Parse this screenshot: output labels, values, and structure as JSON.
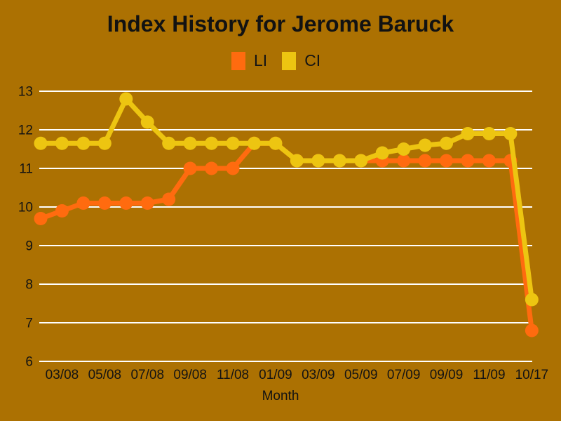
{
  "colors": {
    "background": "#AC7102",
    "gridline": "#FFFFFF",
    "text": "#131313",
    "li_orange": "#FF6B0F",
    "ci_yellow": "#EDC511"
  },
  "chart_data": {
    "type": "line",
    "title": "Index History for Jerome Baruck",
    "xlabel": "Month",
    "ylabel": "",
    "ylim": [
      6,
      13
    ],
    "yticks": [
      6,
      7,
      8,
      9,
      10,
      11,
      12,
      13
    ],
    "grid": true,
    "legend_position": "top-center",
    "categories": [
      "02/08",
      "03/08",
      "04/08",
      "05/08",
      "06/08",
      "07/08",
      "08/08",
      "09/08",
      "10/08",
      "11/08",
      "12/08",
      "01/09",
      "02/09",
      "03/09",
      "04/09",
      "05/09",
      "06/09",
      "07/09",
      "08/09",
      "09/09",
      "10/09",
      "11/09",
      "12/09",
      "10/17"
    ],
    "x_tick_labels": [
      "03/08",
      "05/08",
      "07/08",
      "09/08",
      "11/08",
      "01/09",
      "03/09",
      "05/09",
      "07/09",
      "09/09",
      "11/09",
      "10/17"
    ],
    "series": [
      {
        "name": "LI",
        "color": "#FF6B0F",
        "values": [
          9.7,
          9.9,
          10.1,
          10.1,
          10.1,
          10.1,
          10.2,
          11.0,
          11.0,
          11.0,
          11.65,
          11.65,
          11.2,
          11.2,
          11.2,
          11.2,
          11.2,
          11.2,
          11.2,
          11.2,
          11.2,
          11.2,
          11.2,
          6.8
        ]
      },
      {
        "name": "CI",
        "color": "#EDC511",
        "values": [
          11.65,
          11.65,
          11.65,
          11.65,
          12.8,
          12.2,
          11.65,
          11.65,
          11.65,
          11.65,
          11.65,
          11.65,
          11.2,
          11.2,
          11.2,
          11.2,
          11.4,
          11.5,
          11.6,
          11.65,
          11.9,
          11.9,
          11.9,
          7.6
        ]
      }
    ]
  }
}
